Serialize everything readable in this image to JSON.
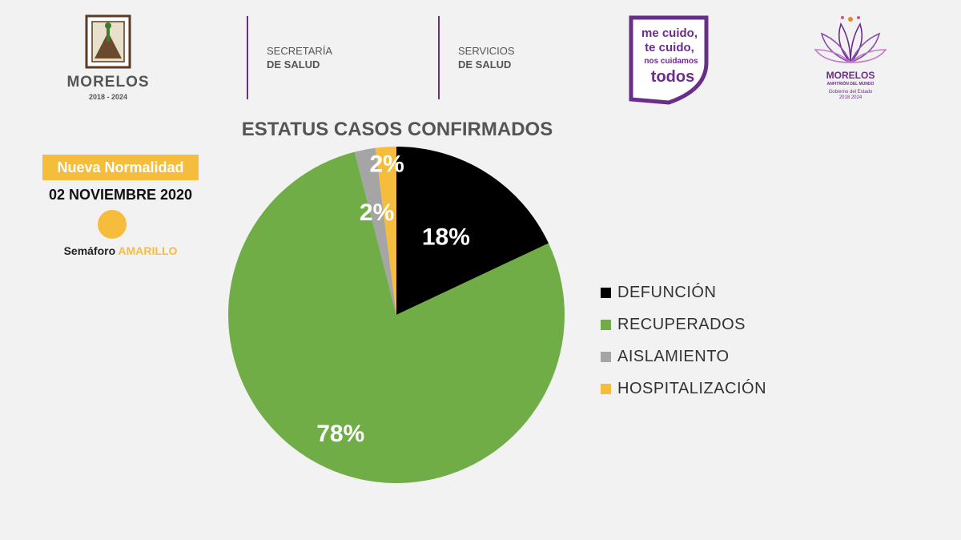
{
  "header": {
    "left_logo": {
      "name": "MORELOS",
      "years": "2018 - 2024"
    },
    "secretaria": {
      "line1": "SECRETARÍA",
      "line2": "DE SALUD"
    },
    "servicios": {
      "line1": "SERVICIOS",
      "line2": "DE SALUD"
    },
    "slogan": {
      "line1": "me cuido,",
      "line2": "te cuido,",
      "line3": "nos cuidamos",
      "line4": "todos"
    },
    "right_logo": {
      "name": "MORELOS",
      "tagline": "ANFITRIÓN DEL MUNDO",
      "gov": "Gobierno del Estado",
      "years": "2018 2024"
    }
  },
  "status_panel": {
    "badge": "Nueva Normalidad",
    "date": "02 NOVIEMBRE 2020",
    "semaforo_label": "Semáforo",
    "semaforo_value": "AMARILLO",
    "semaforo_color": "#f6bd3c"
  },
  "chart_data": {
    "type": "pie",
    "title": "ESTATUS CASOS CONFIRMADOS",
    "legend_position": "right",
    "slices": [
      {
        "label": "DEFUNCIÓN",
        "value": 18,
        "display": "18%",
        "color": "#000000"
      },
      {
        "label": "RECUPERADOS",
        "value": 78,
        "display": "78%",
        "color": "#70ad47"
      },
      {
        "label": "AISLAMIENTO",
        "value": 2,
        "display": "2%",
        "color": "#a5a5a5"
      },
      {
        "label": "HOSPITALIZACIÓN",
        "value": 2,
        "display": "2%",
        "color": "#f6bd3c"
      }
    ]
  }
}
